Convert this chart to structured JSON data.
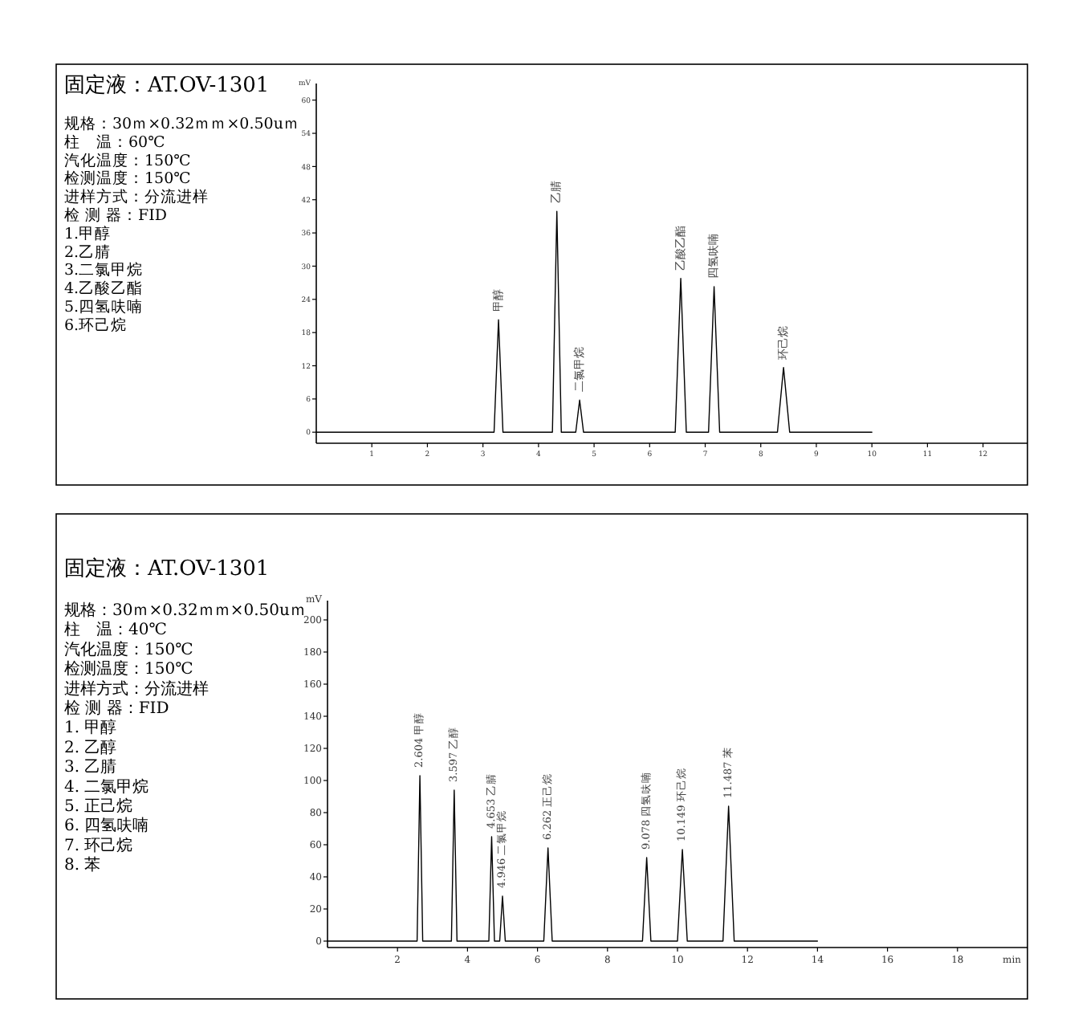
{
  "chart_data": [
    {
      "type": "line",
      "title": "固定液：AT.OV-1301",
      "color": "#000000",
      "ylabel": "mV",
      "annotations": [
        "规格：30ｍ×0.32ｍｍ×0.50uｍ",
        "柱　温：60℃",
        "汽化温度：150℃",
        "检测温度：150℃",
        "进样方式：分流进样",
        "检 测 器：FID",
        "1.甲醇",
        "2.乙腈",
        "3.二氯甲烷",
        "4.乙酸乙酯",
        "5.四氢呋喃",
        "6.环己烷",
        {
          "text": "甲醇",
          "x": 3.28,
          "y": 20.3
        },
        {
          "text": "乙腈",
          "x": 4.33,
          "y": 39.9
        },
        {
          "text": "二氯甲烷",
          "x": 4.74,
          "y": 5.8
        },
        {
          "text": "乙酸乙酯",
          "x": 6.56,
          "y": 27.8
        },
        {
          "text": "四氢呋喃",
          "x": 7.16,
          "y": 26.3
        },
        {
          "text": "环己烷",
          "x": 8.41,
          "y": 11.7
        }
      ],
      "x": [
        0,
        3.2,
        3.28,
        3.36,
        4.25,
        4.33,
        4.41,
        4.67,
        4.74,
        4.81,
        6.46,
        6.56,
        6.66,
        7.06,
        7.16,
        7.26,
        8.3,
        8.41,
        8.52,
        10
      ],
      "values": [
        0,
        0,
        20.3,
        0,
        0,
        39.9,
        0,
        0,
        5.8,
        0,
        0,
        27.8,
        0,
        0,
        26.3,
        0,
        0,
        11.7,
        0,
        0
      ],
      "xlim": [
        0,
        12.8
      ],
      "ylim": [
        -2,
        63
      ],
      "xticks": [
        1,
        2,
        3,
        4,
        5,
        6,
        7,
        8,
        9,
        10,
        11,
        12
      ],
      "yticks": [
        0,
        6,
        12,
        18,
        24,
        30,
        36,
        42,
        48,
        54,
        60
      ]
    },
    {
      "type": "line",
      "title": "固定液：AT.OV-1301",
      "color": "#000000",
      "ylabel": "mV",
      "xlabel": "min",
      "annotations": [
        "规格：30ｍ×0.32ｍｍ×0.50uｍ",
        "柱　温：40℃",
        "汽化温度：150℃",
        "检测温度：150℃",
        "进样方式：分流进样",
        "检 测 器：FID",
        "1. 甲醇",
        "2. 乙醇",
        "3. 乙腈",
        "4. 二氯甲烷",
        "5. 正己烷",
        "6. 四氢呋喃",
        "7. 环己烷",
        "8. 苯",
        {
          "text": "2.604 甲醇",
          "x": 2.64,
          "y": 103
        },
        {
          "text": "3.597 乙醇",
          "x": 3.62,
          "y": 94
        },
        {
          "text": "4.653 乙腈",
          "x": 4.69,
          "y": 65
        },
        {
          "text": "4.946 二氯甲烷",
          "x": 5.0,
          "y": 28
        },
        {
          "text": "6.262 正己烷",
          "x": 6.3,
          "y": 58
        },
        {
          "text": "9.078 四氢呋喃",
          "x": 9.12,
          "y": 52
        },
        {
          "text": "10.149 环己烷",
          "x": 10.14,
          "y": 57
        },
        {
          "text": "11.487 苯",
          "x": 11.46,
          "y": 84
        }
      ],
      "x": [
        0,
        2.56,
        2.64,
        2.72,
        3.54,
        3.62,
        3.7,
        4.61,
        4.69,
        4.77,
        4.92,
        5.0,
        5.08,
        6.18,
        6.3,
        6.42,
        9.0,
        9.12,
        9.24,
        10.0,
        10.14,
        10.28,
        11.3,
        11.46,
        11.62,
        14
      ],
      "values": [
        0,
        0,
        103,
        0,
        0,
        94,
        0,
        0,
        65,
        0,
        0,
        28,
        0,
        0,
        58,
        0,
        0,
        52,
        0,
        0,
        57,
        0,
        0,
        84,
        0,
        0
      ],
      "xlim": [
        0,
        20
      ],
      "ylim": [
        -4,
        212
      ],
      "xticks": [
        2,
        4,
        6,
        8,
        10,
        12,
        14,
        16,
        18
      ],
      "yticks": [
        0,
        20,
        40,
        60,
        80,
        100,
        120,
        140,
        160,
        180,
        200
      ]
    }
  ]
}
